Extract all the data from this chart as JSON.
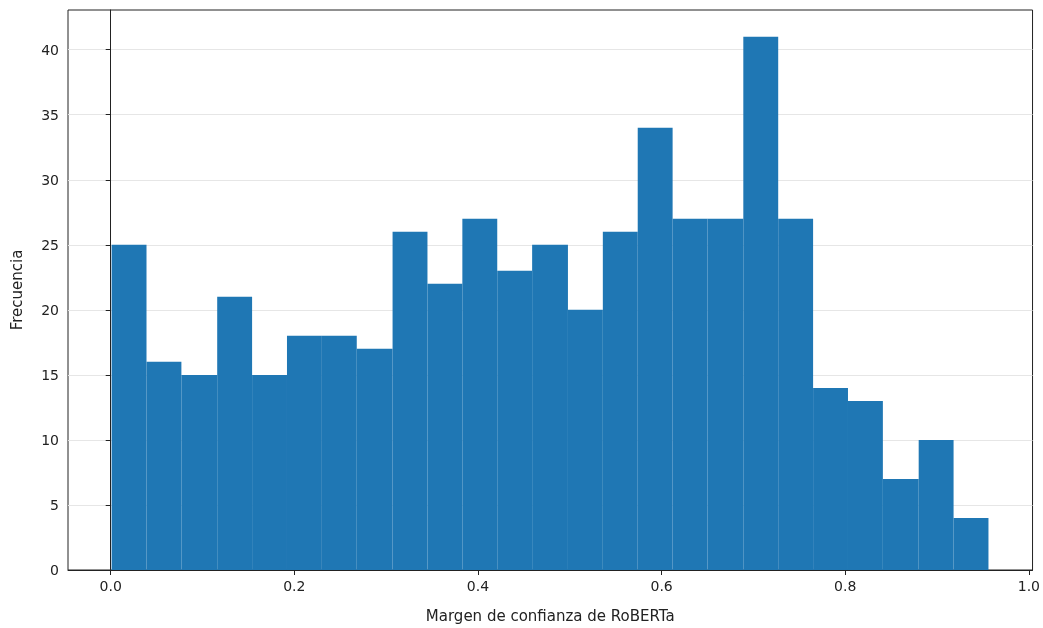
{
  "chart_data": {
    "type": "histogram",
    "xlabel": "Margen de confianza de RoBERTa",
    "ylabel": "Frecuencia",
    "bins": [
      0.001,
      0.039,
      0.077,
      0.116,
      0.154,
      0.192,
      0.23,
      0.268,
      0.307,
      0.345,
      0.383,
      0.421,
      0.459,
      0.498,
      0.536,
      0.574,
      0.612,
      0.65,
      0.689,
      0.727,
      0.765,
      0.803,
      0.841,
      0.88,
      0.918,
      0.956
    ],
    "values": [
      25,
      16,
      15,
      21,
      15,
      18,
      18,
      17,
      26,
      22,
      27,
      23,
      25,
      20,
      26,
      34,
      27,
      27,
      41,
      27,
      14,
      13,
      7,
      10,
      4
    ],
    "color": "#1f77b4",
    "xlim": [
      -0.0465,
      1.004
    ],
    "xticks": [
      {
        "value": 0,
        "label": "0.0"
      },
      0.2,
      0.4,
      0.6,
      0.8,
      {
        "value": 1,
        "label": "1.0"
      }
    ],
    "ylim": [
      0,
      43.05
    ],
    "yticks": [
      0,
      5,
      10,
      15,
      20,
      25,
      30,
      35,
      40
    ],
    "grid": "y"
  }
}
